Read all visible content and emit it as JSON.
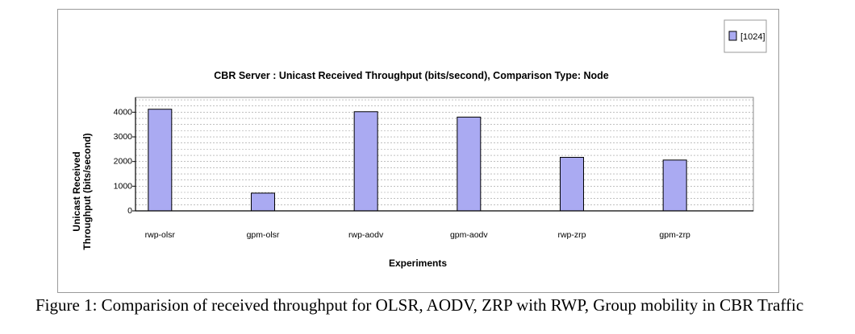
{
  "chart_data": {
    "type": "bar",
    "title": "CBR Server :  Unicast Received Throughput (bits/second), Comparison Type: Node",
    "xlabel": "Experiments",
    "ylabel_line1": "Unicast Received",
    "ylabel_line2": "Throughput (bits/second)",
    "categories": [
      "rwp-olsr",
      "gpm-olsr",
      "rwp-aodv",
      "gpm-aodv",
      "rwp-zrp",
      "gpm-zrp"
    ],
    "series": [
      {
        "name": "[1024]",
        "values": [
          4120,
          720,
          4020,
          3800,
          2170,
          2060
        ]
      }
    ],
    "ylim": [
      0,
      4600
    ],
    "yticks": [
      0,
      1000,
      2000,
      3000,
      4000
    ],
    "ytick_labels": [
      "0",
      "1000",
      "2000",
      "3000",
      "4000"
    ],
    "grid": true,
    "legend_position": "top-right",
    "bar_color": "#aaaaf2"
  },
  "caption": "Figure 1: Comparision of received throughput for OLSR, AODV, ZRP with RWP, Group mobility in CBR Traffic"
}
